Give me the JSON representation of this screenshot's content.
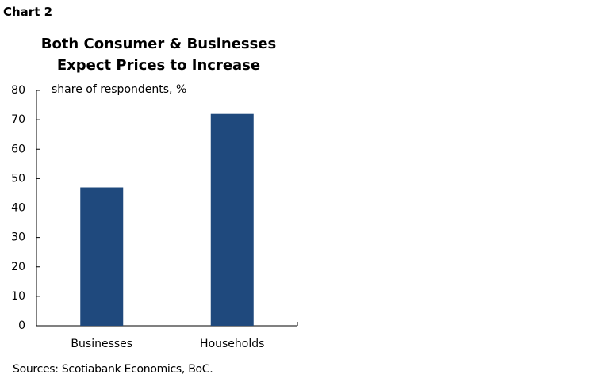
{
  "chart_data": {
    "type": "bar",
    "chart_label": "Chart 2",
    "title": "Both Consumer & Businesses Expect Prices to Increase",
    "y_label": "share of respondents, %",
    "source": "Sources: Scotiabank Economics, BoC.",
    "categories": [
      "Businesses",
      "Households"
    ],
    "values": [
      47,
      72
    ],
    "color": "#1f497d",
    "ylim": [
      0,
      80
    ],
    "yticks": [
      0,
      10,
      20,
      30,
      40,
      50,
      60,
      70,
      80
    ],
    "grid": false
  }
}
